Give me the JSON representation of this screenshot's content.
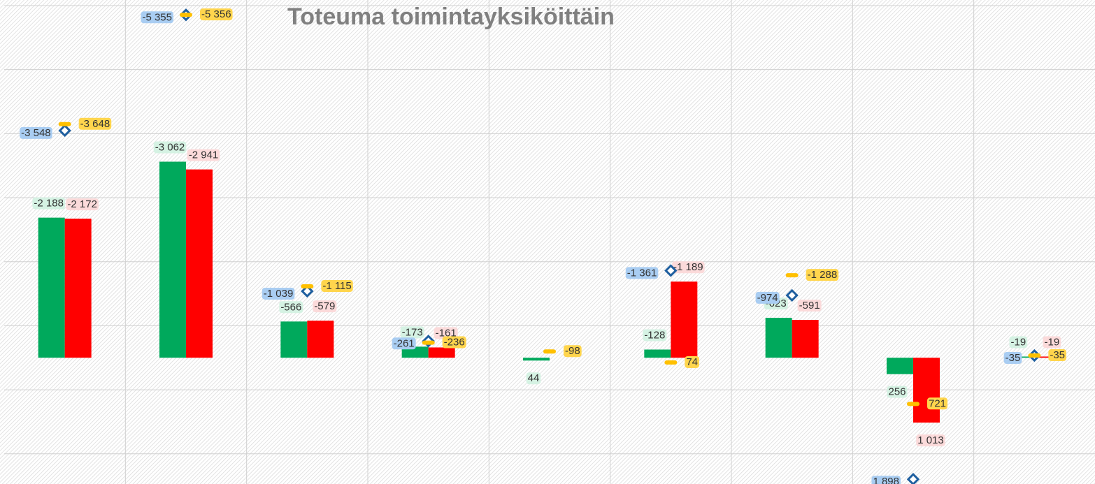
{
  "chart_data": {
    "type": "bar",
    "title": "Toteuma toimintayksiköittäin",
    "categories": [
      null,
      null,
      null,
      null,
      null,
      null,
      null,
      null,
      null
    ],
    "ylim": [
      1950,
      -5500
    ],
    "yticks": [
      1500,
      500,
      -500,
      -1500,
      -2500,
      -3500,
      -4500,
      -5500
    ],
    "grid": true,
    "series": [
      {
        "color": "#00a95c",
        "label_bg": "#d5f2e3",
        "values": [
          -2188,
          -3062,
          -566,
          -173,
          44,
          -128,
          -623,
          256,
          -19
        ],
        "value_labels": [
          "-2 188",
          "-3 062",
          "-566",
          "-173",
          "44",
          "-128",
          "-623",
          "256",
          "-19"
        ]
      },
      {
        "color": "#ff0000",
        "label_bg": "#fbdada",
        "values": [
          -2172,
          -2941,
          -579,
          -161,
          null,
          -1189,
          -591,
          1013,
          -19
        ],
        "value_labels": [
          "-2 172",
          "-2 941",
          "-579",
          "-161",
          null,
          "-1 189",
          "-591",
          "1 013",
          "-19"
        ]
      },
      {
        "type": "diamond",
        "color": "#1f5f9f",
        "label_bg": "#a9cdf2",
        "values": [
          -3548,
          -5355,
          -1039,
          -261,
          null,
          -1361,
          -974,
          1898,
          -35
        ],
        "value_labels": [
          "-3 548",
          "-5 355",
          "-1 039",
          "-261",
          null,
          "-1 361",
          "-974",
          "1 898",
          "-35"
        ]
      },
      {
        "type": "dash",
        "color": "#ffc000",
        "label_bg": "#ffd54d",
        "values": [
          -3648,
          -5356,
          -1115,
          -236,
          -98,
          74,
          -1288,
          721,
          -35
        ],
        "value_labels": [
          "-3 648",
          "-5 356",
          "-1 115",
          "-236",
          "-98",
          "74",
          "-1 288",
          "721",
          "-35"
        ]
      }
    ]
  }
}
